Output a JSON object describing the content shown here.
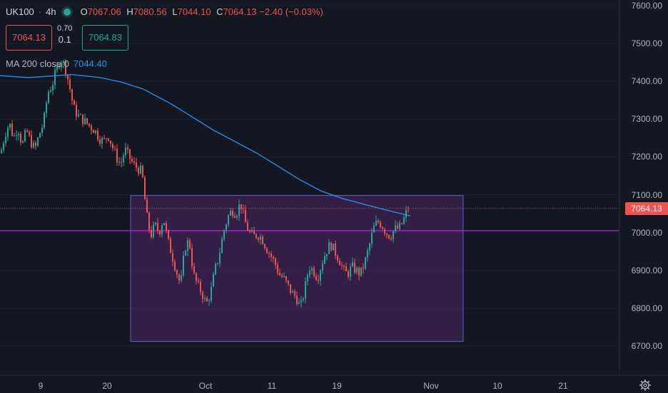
{
  "legend": {
    "symbol": "UK100",
    "timeframe": "4h",
    "open_key": "O",
    "open": "7067.06",
    "high_key": "H",
    "high": "7080.56",
    "low_key": "L",
    "low": "7044.10",
    "close_key": "C",
    "close": "7064.13",
    "change": "−2.40 (−0.03%)"
  },
  "trade": {
    "sell_price": "7064.13",
    "buy_price": "7064.83",
    "spread_top": "0.70",
    "spread_bottom": "0.1"
  },
  "ma": {
    "label": "MA 200 close 0",
    "value": "7044.40"
  },
  "price_axis": {
    "labels": [
      "7600.00",
      "7500.00",
      "7400.00",
      "7300.00",
      "7200.00",
      "7100.00",
      "7000.00",
      "6900.00",
      "6800.00",
      "6700.00"
    ],
    "last_price": "7064.13"
  },
  "time_axis": {
    "labels": [
      "9",
      "20",
      "Oct",
      "11",
      "19",
      "Nov",
      "10",
      "21"
    ]
  },
  "colors": {
    "background": "#131722",
    "up": "#26a69a",
    "down": "#ef5350",
    "ma_line": "#2196f3",
    "range_fill": "#6a2c7e",
    "range_border": "#5b63d6",
    "hline": "#c71fe0"
  },
  "chart_data": {
    "type": "candlestick",
    "price_range": [
      6680,
      7600
    ],
    "x_ticks": [
      "9",
      "20",
      "Oct",
      "11",
      "19",
      "Nov",
      "10",
      "21"
    ],
    "last_price": 7064.13,
    "horizontal_line": 7005,
    "range_box": {
      "top": 7098,
      "bottom": 6712,
      "from": "Sep 21",
      "to": "Nov 4"
    },
    "ma200_path": [
      [
        0,
        7415
      ],
      [
        40,
        7410
      ],
      [
        80,
        7415
      ],
      [
        100,
        7418
      ],
      [
        140,
        7410
      ],
      [
        170,
        7398
      ],
      [
        200,
        7380
      ],
      [
        240,
        7340
      ],
      [
        270,
        7305
      ],
      [
        300,
        7270
      ],
      [
        330,
        7240
      ],
      [
        360,
        7210
      ],
      [
        390,
        7175
      ],
      [
        420,
        7140
      ],
      [
        450,
        7110
      ],
      [
        480,
        7090
      ],
      [
        510,
        7075
      ],
      [
        540,
        7060
      ],
      [
        575,
        7044
      ]
    ],
    "candles_path": [
      [
        0,
        7210
      ],
      [
        6,
        7260
      ],
      [
        12,
        7290
      ],
      [
        18,
        7250
      ],
      [
        24,
        7280
      ],
      [
        30,
        7230
      ],
      [
        36,
        7270
      ],
      [
        42,
        7240
      ],
      [
        48,
        7220
      ],
      [
        54,
        7260
      ],
      [
        60,
        7290
      ],
      [
        66,
        7370
      ],
      [
        72,
        7390
      ],
      [
        78,
        7430
      ],
      [
        84,
        7460
      ],
      [
        90,
        7440
      ],
      [
        96,
        7390
      ],
      [
        102,
        7330
      ],
      [
        108,
        7310
      ],
      [
        114,
        7300
      ],
      [
        120,
        7290
      ],
      [
        126,
        7280
      ],
      [
        132,
        7270
      ],
      [
        138,
        7250
      ],
      [
        144,
        7240
      ],
      [
        150,
        7260
      ],
      [
        156,
        7230
      ],
      [
        162,
        7200
      ],
      [
        168,
        7180
      ],
      [
        174,
        7220
      ],
      [
        180,
        7200
      ],
      [
        186,
        7180
      ],
      [
        192,
        7170
      ],
      [
        198,
        7160
      ],
      [
        204,
        7050
      ],
      [
        210,
        6990
      ],
      [
        216,
        7020
      ],
      [
        222,
        7000
      ],
      [
        228,
        7040
      ],
      [
        234,
        6980
      ],
      [
        240,
        6940
      ],
      [
        246,
        6900
      ],
      [
        252,
        6860
      ],
      [
        258,
        6960
      ],
      [
        264,
        6980
      ],
      [
        270,
        6890
      ],
      [
        276,
        6860
      ],
      [
        282,
        6840
      ],
      [
        288,
        6810
      ],
      [
        294,
        6840
      ],
      [
        300,
        6900
      ],
      [
        306,
        6940
      ],
      [
        312,
        7000
      ],
      [
        318,
        7040
      ],
      [
        324,
        7060
      ],
      [
        330,
        7050
      ],
      [
        336,
        7080
      ],
      [
        342,
        7030
      ],
      [
        348,
        7000
      ],
      [
        354,
        6990
      ],
      [
        360,
        6995
      ],
      [
        366,
        6985
      ],
      [
        372,
        6960
      ],
      [
        378,
        6940
      ],
      [
        384,
        6920
      ],
      [
        390,
        6890
      ],
      [
        396,
        6880
      ],
      [
        402,
        6860
      ],
      [
        408,
        6840
      ],
      [
        414,
        6830
      ],
      [
        420,
        6800
      ],
      [
        426,
        6850
      ],
      [
        432,
        6910
      ],
      [
        438,
        6900
      ],
      [
        444,
        6880
      ],
      [
        450,
        6920
      ],
      [
        456,
        6950
      ],
      [
        462,
        6970
      ],
      [
        468,
        6950
      ],
      [
        474,
        6930
      ],
      [
        480,
        6900
      ],
      [
        486,
        6890
      ],
      [
        492,
        6910
      ],
      [
        498,
        6900
      ],
      [
        504,
        6890
      ],
      [
        510,
        6920
      ],
      [
        516,
        6960
      ],
      [
        522,
        7010
      ],
      [
        528,
        7030
      ],
      [
        534,
        7020
      ],
      [
        540,
        7000
      ],
      [
        546,
        6990
      ],
      [
        552,
        7010
      ],
      [
        558,
        7010
      ],
      [
        564,
        7030
      ],
      [
        570,
        7064
      ]
    ]
  }
}
